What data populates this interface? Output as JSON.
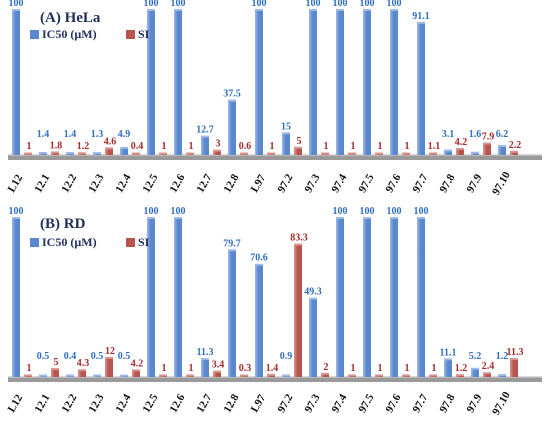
{
  "colors": {
    "ic50": "#5b87cf",
    "ic50_light": "#9db9e8",
    "si": "#b85450",
    "si_light": "#d99590",
    "floor": "#9a9a9a",
    "floor_top": "#d9d9d9",
    "ic50_label": "#2f6fc0",
    "si_label": "#a52a2a"
  },
  "chart_data": [
    {
      "type": "bar",
      "panel": "(A)",
      "title": "HeLa",
      "legend": [
        "IC50  (µM)",
        "SI"
      ],
      "legend_placement": "top-left",
      "ylim": [
        0,
        100
      ],
      "categories": [
        "L12",
        "12.1",
        "12.2",
        "12.3",
        "12.4",
        "12.5",
        "12.6",
        "12.7",
        "12.8",
        "L97",
        "97.2",
        "97.3",
        "97.4",
        "97.5",
        "97.6",
        "97.7",
        "97.8",
        "97.9",
        "97.10"
      ],
      "series": [
        {
          "name": "IC50  (µM)",
          "values": [
            100,
            1.4,
            1.4,
            1.3,
            4.9,
            100,
            100,
            12.7,
            37.5,
            100,
            15,
            100,
            100,
            100,
            100,
            91.1,
            3.1,
            1.6,
            6.2
          ],
          "labels": [
            "100",
            "1.4",
            "1.4",
            "1.3",
            "4.9",
            "100",
            "100",
            "12.7",
            "37.5",
            "100",
            "15",
            "100",
            "100",
            "100",
            "100",
            "91.1",
            "3.1",
            "1.6",
            "6.2"
          ]
        },
        {
          "name": "SI",
          "values": [
            1,
            1.8,
            1.2,
            4.6,
            0.4,
            1,
            1,
            3,
            0.6,
            1,
            5,
            1,
            1,
            1,
            1,
            1.1,
            4.2,
            7.9,
            2.2
          ],
          "labels": [
            "1",
            "1.8",
            "1.2",
            "4.6",
            "0.4",
            "1",
            "1",
            "3",
            "0.6",
            "1",
            "5",
            "1",
            "1",
            "1",
            "1",
            "1.1",
            "4.2",
            "7.9",
            "2.2"
          ]
        }
      ]
    },
    {
      "type": "bar",
      "panel": "(B)",
      "title": "RD",
      "legend": [
        "IC50  (µM)",
        "SI"
      ],
      "legend_placement": "top-left",
      "ylim": [
        0,
        100
      ],
      "categories": [
        "L12",
        "12.1",
        "12.2",
        "12.3",
        "12.4",
        "12.5",
        "12.6",
        "12.7",
        "12.8",
        "L97",
        "97.2",
        "97.3",
        "97.4",
        "97.5",
        "97.6",
        "97.7",
        "97.8",
        "97.9",
        "97.10"
      ],
      "series": [
        {
          "name": "IC50  (µM)",
          "values": [
            100,
            0.5,
            0.4,
            0.5,
            0.5,
            100,
            100,
            11.3,
            79.7,
            70.6,
            0.9,
            49.3,
            100,
            100,
            100,
            100,
            11.1,
            5.2,
            1.2
          ],
          "labels": [
            "100",
            "0.5",
            "0.4",
            "0.5",
            "0.5",
            "100",
            "100",
            "11.3",
            "79.7",
            "70.6",
            "0.9",
            "49.3",
            "100",
            "100",
            "100",
            "100",
            "11.1",
            "5.2",
            "1.2"
          ]
        },
        {
          "name": "SI",
          "values": [
            1,
            5,
            4.3,
            12,
            4.2,
            1,
            1,
            3.4,
            0.3,
            1.4,
            83.3,
            2,
            1,
            1,
            1,
            1,
            1.2,
            2.4,
            11.3
          ],
          "labels": [
            "1",
            "5",
            "4.3",
            "12",
            "4.2",
            "1",
            "1",
            "3.4",
            "0.3",
            "1.4",
            "83.3",
            "2",
            "1",
            "1",
            "1",
            "1",
            "1.2",
            "2.4",
            "11.3"
          ]
        }
      ]
    }
  ]
}
